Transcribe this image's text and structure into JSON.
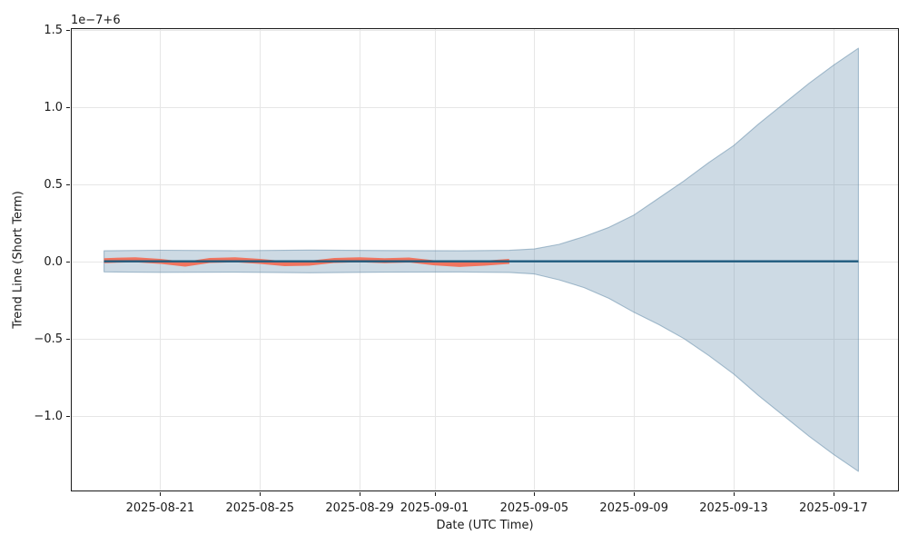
{
  "chart_data": {
    "type": "line",
    "title": "",
    "xlabel": "Date (UTC Time)",
    "ylabel": "Trend Line (Short Term)",
    "offset_text": "1e−7+6",
    "grid": true,
    "legend": "none",
    "xlim": [
      "2025-08-17T10:00:00Z",
      "2025-09-19T15:00:00Z"
    ],
    "ylim": [
      -1.49,
      1.51
    ],
    "x_ticks": [
      {
        "value": "2025-08-21",
        "label": "2025-08-21"
      },
      {
        "value": "2025-08-25",
        "label": "2025-08-25"
      },
      {
        "value": "2025-08-29",
        "label": "2025-08-29"
      },
      {
        "value": "2025-09-01",
        "label": "2025-09-01"
      },
      {
        "value": "2025-09-05",
        "label": "2025-09-05"
      },
      {
        "value": "2025-09-09",
        "label": "2025-09-09"
      },
      {
        "value": "2025-09-13",
        "label": "2025-09-13"
      },
      {
        "value": "2025-09-17",
        "label": "2025-09-17"
      }
    ],
    "y_ticks": [
      {
        "value": 1.5,
        "label": "1.5"
      },
      {
        "value": 1.0,
        "label": "1.0"
      },
      {
        "value": 0.5,
        "label": "0.5"
      },
      {
        "value": 0.0,
        "label": "0.0"
      },
      {
        "value": -0.5,
        "label": "−0.5"
      },
      {
        "value": -1.0,
        "label": "−1.0"
      }
    ],
    "series": [
      {
        "name": "actual",
        "color": "#f0745f",
        "line_width": 5.5,
        "x": [
          "2025-08-18T18:00:00",
          "2025-08-19",
          "2025-08-20",
          "2025-08-21",
          "2025-08-22",
          "2025-08-23",
          "2025-08-24",
          "2025-08-25",
          "2025-08-26",
          "2025-08-27",
          "2025-08-28",
          "2025-08-29",
          "2025-08-30",
          "2025-08-31",
          "2025-09-01",
          "2025-09-02",
          "2025-09-03",
          "2025-09-04"
        ],
        "y": [
          0.004,
          0.006,
          0.01,
          0.0,
          -0.018,
          0.006,
          0.01,
          0.0,
          -0.015,
          -0.012,
          0.006,
          0.01,
          0.004,
          0.008,
          -0.01,
          -0.02,
          -0.012,
          0.0
        ]
      },
      {
        "name": "trend",
        "color": "#1f5b7e",
        "line_width": 2.4,
        "x": [
          "2025-08-18T18:00:00",
          "2025-09-18"
        ],
        "y": [
          0.0,
          0.0
        ]
      }
    ],
    "band": {
      "name": "confidence-interval",
      "fill": "rgba(100,140,170,0.32)",
      "edge": "rgba(100,140,170,0.55)",
      "x": [
        "2025-08-18T18:00:00",
        "2025-08-21",
        "2025-08-24",
        "2025-08-27",
        "2025-08-30",
        "2025-09-02",
        "2025-09-04",
        "2025-09-05",
        "2025-09-06",
        "2025-09-07",
        "2025-09-08",
        "2025-09-09",
        "2025-09-10",
        "2025-09-11",
        "2025-09-12",
        "2025-09-13",
        "2025-09-14",
        "2025-09-15",
        "2025-09-16",
        "2025-09-17",
        "2025-09-18"
      ],
      "upper": [
        0.068,
        0.072,
        0.069,
        0.073,
        0.07,
        0.068,
        0.071,
        0.08,
        0.11,
        0.16,
        0.22,
        0.3,
        0.41,
        0.52,
        0.64,
        0.75,
        0.89,
        1.02,
        1.15,
        1.27,
        1.38
      ],
      "lower": [
        -0.068,
        -0.071,
        -0.07,
        -0.074,
        -0.07,
        -0.069,
        -0.072,
        -0.082,
        -0.12,
        -0.17,
        -0.24,
        -0.33,
        -0.41,
        -0.5,
        -0.61,
        -0.73,
        -0.87,
        -1.0,
        -1.13,
        -1.25,
        -1.36
      ]
    },
    "colors": {
      "grid": "#e6e6e6",
      "spine": "#1a1a1a",
      "text": "#1a1a1a",
      "background": "#ffffff"
    }
  }
}
